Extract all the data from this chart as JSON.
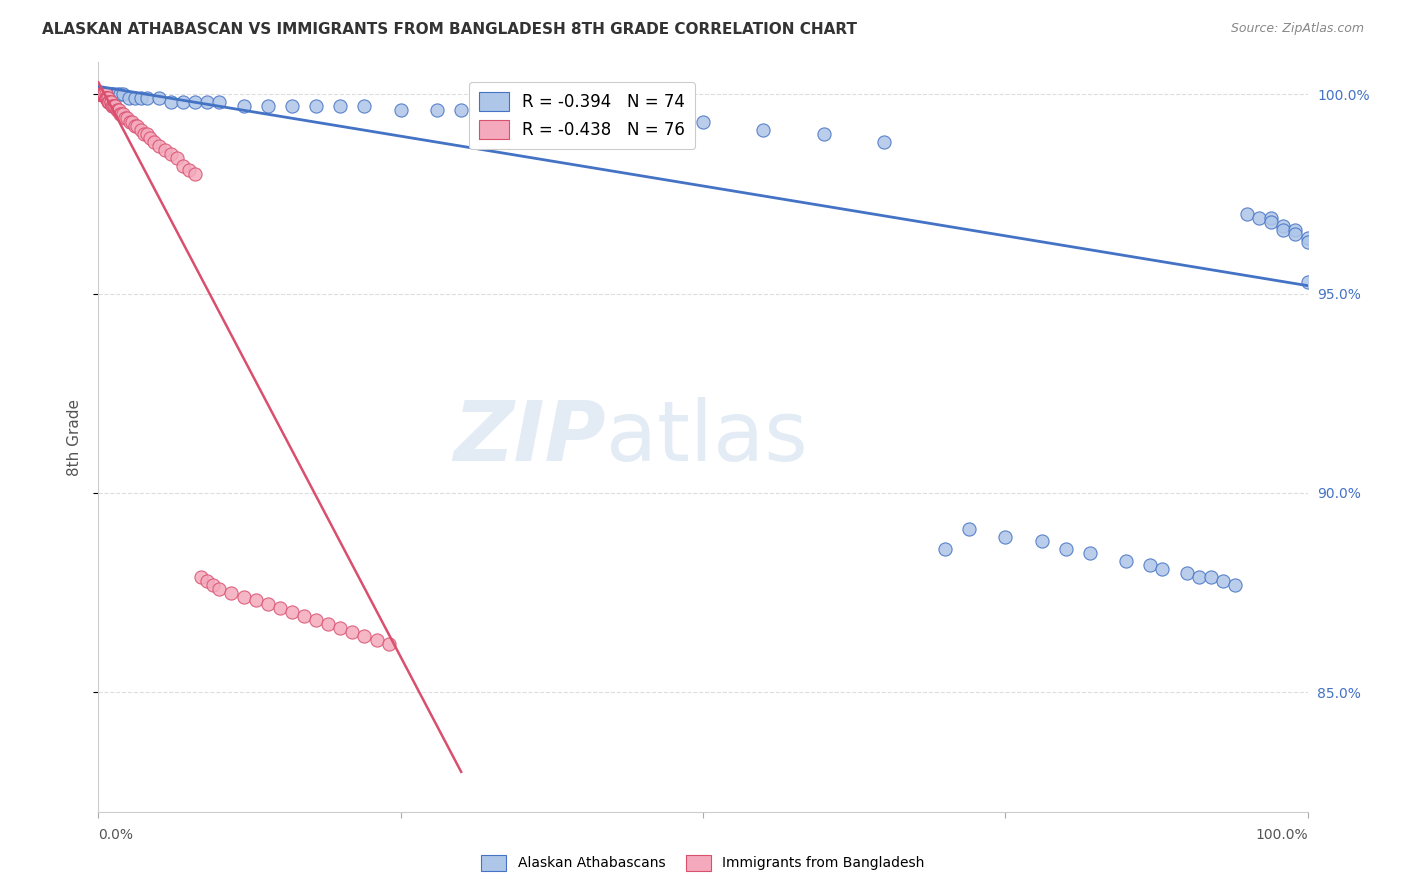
{
  "title": "ALASKAN ATHABASCAN VS IMMIGRANTS FROM BANGLADESH 8TH GRADE CORRELATION CHART",
  "source": "Source: ZipAtlas.com",
  "ylabel": "8th Grade",
  "right_yticks": [
    0.85,
    0.9,
    0.95,
    1.0
  ],
  "right_yticklabels": [
    "85.0%",
    "90.0%",
    "95.0%",
    "100.0%"
  ],
  "blue_R": -0.394,
  "blue_N": 74,
  "pink_R": -0.438,
  "pink_N": 76,
  "blue_color": "#aec6e8",
  "pink_color": "#f4aabc",
  "blue_line_color": "#4472C4",
  "pink_line_color": "#d94f6e",
  "watermark": "ZIPatlas",
  "watermark_color": "#c8d8ec",
  "background_color": "#ffffff",
  "grid_color": "#dddddd",
  "xlim": [
    0.0,
    1.0
  ],
  "ylim": [
    0.82,
    1.008
  ],
  "blue_scatter_x": [
    0.001,
    0.002,
    0.002,
    0.003,
    0.003,
    0.004,
    0.004,
    0.005,
    0.005,
    0.006,
    0.006,
    0.007,
    0.008,
    0.009,
    0.01,
    0.01,
    0.012,
    0.015,
    0.018,
    0.02,
    0.025,
    0.03,
    0.035,
    0.04,
    0.05,
    0.06,
    0.07,
    0.08,
    0.09,
    0.1,
    0.12,
    0.14,
    0.16,
    0.18,
    0.2,
    0.22,
    0.25,
    0.28,
    0.3,
    0.32,
    0.35,
    0.38,
    0.4,
    0.43,
    0.45,
    0.5,
    0.55,
    0.6,
    0.65,
    0.7,
    0.72,
    0.75,
    0.78,
    0.8,
    0.82,
    0.85,
    0.87,
    0.88,
    0.9,
    0.91,
    0.92,
    0.93,
    0.94,
    0.95,
    0.96,
    0.97,
    0.97,
    0.98,
    0.98,
    0.99,
    0.99,
    1.0,
    1.0,
    1.0
  ],
  "blue_scatter_y": [
    1.0,
    1.0,
    1.0,
    1.0,
    1.0,
    1.0,
    1.0,
    1.0,
    1.0,
    1.0,
    1.0,
    1.0,
    1.0,
    1.0,
    1.0,
    1.0,
    1.0,
    1.0,
    1.0,
    1.0,
    0.999,
    0.999,
    0.999,
    0.999,
    0.999,
    0.998,
    0.998,
    0.998,
    0.998,
    0.998,
    0.997,
    0.997,
    0.997,
    0.997,
    0.997,
    0.997,
    0.996,
    0.996,
    0.996,
    0.996,
    0.995,
    0.995,
    0.995,
    0.995,
    0.994,
    0.993,
    0.991,
    0.99,
    0.988,
    0.886,
    0.891,
    0.889,
    0.888,
    0.886,
    0.885,
    0.883,
    0.882,
    0.881,
    0.88,
    0.879,
    0.879,
    0.878,
    0.877,
    0.97,
    0.969,
    0.969,
    0.968,
    0.967,
    0.966,
    0.966,
    0.965,
    0.964,
    0.963,
    0.953
  ],
  "pink_scatter_x": [
    0.0003,
    0.0005,
    0.001,
    0.001,
    0.001,
    0.0015,
    0.002,
    0.002,
    0.002,
    0.003,
    0.003,
    0.003,
    0.003,
    0.004,
    0.004,
    0.004,
    0.005,
    0.005,
    0.005,
    0.006,
    0.006,
    0.006,
    0.007,
    0.007,
    0.008,
    0.008,
    0.009,
    0.009,
    0.01,
    0.01,
    0.011,
    0.012,
    0.013,
    0.014,
    0.015,
    0.016,
    0.017,
    0.018,
    0.019,
    0.02,
    0.022,
    0.024,
    0.026,
    0.028,
    0.03,
    0.032,
    0.035,
    0.038,
    0.04,
    0.043,
    0.046,
    0.05,
    0.055,
    0.06,
    0.065,
    0.07,
    0.075,
    0.08,
    0.085,
    0.09,
    0.095,
    0.1,
    0.11,
    0.12,
    0.13,
    0.14,
    0.15,
    0.16,
    0.17,
    0.18,
    0.19,
    0.2,
    0.21,
    0.22,
    0.23,
    0.24
  ],
  "pink_scatter_y": [
    1.0,
    1.0,
    1.0,
    1.0,
    1.0,
    1.0,
    1.0,
    1.0,
    1.0,
    1.0,
    1.0,
    1.0,
    1.0,
    1.0,
    1.0,
    1.0,
    1.0,
    1.0,
    1.0,
    1.0,
    0.999,
    0.999,
    0.999,
    0.999,
    0.999,
    0.998,
    0.998,
    0.998,
    0.998,
    0.998,
    0.997,
    0.997,
    0.997,
    0.997,
    0.996,
    0.996,
    0.996,
    0.995,
    0.995,
    0.995,
    0.994,
    0.994,
    0.993,
    0.993,
    0.992,
    0.992,
    0.991,
    0.99,
    0.99,
    0.989,
    0.988,
    0.987,
    0.986,
    0.985,
    0.984,
    0.982,
    0.981,
    0.98,
    0.879,
    0.878,
    0.877,
    0.876,
    0.875,
    0.874,
    0.873,
    0.872,
    0.871,
    0.87,
    0.869,
    0.868,
    0.867,
    0.866,
    0.865,
    0.864,
    0.863,
    0.862
  ],
  "blue_trend_x": [
    0.0,
    1.0
  ],
  "blue_trend_y": [
    1.002,
    0.952
  ],
  "pink_trend_x": [
    0.0,
    0.3
  ],
  "pink_trend_y": [
    1.003,
    0.83
  ]
}
